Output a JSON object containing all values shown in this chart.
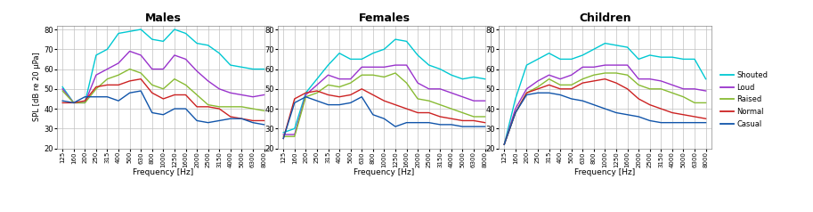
{
  "freq_labels": [
    125,
    160,
    200,
    250,
    315,
    400,
    500,
    630,
    800,
    1000,
    1250,
    1600,
    2000,
    2500,
    3150,
    4000,
    5000,
    6300,
    8000
  ],
  "males": {
    "shouted": [
      51,
      43,
      43,
      67,
      70,
      78,
      79,
      80,
      75,
      74,
      80,
      78,
      73,
      72,
      68,
      62,
      61,
      60,
      60
    ],
    "loud": [
      50,
      43,
      43,
      57,
      60,
      63,
      69,
      67,
      60,
      60,
      67,
      65,
      59,
      54,
      50,
      48,
      47,
      46,
      47
    ],
    "raised": [
      49,
      43,
      43,
      50,
      55,
      57,
      60,
      58,
      52,
      50,
      55,
      52,
      47,
      42,
      41,
      41,
      41,
      40,
      39
    ],
    "normal": [
      43,
      43,
      44,
      51,
      52,
      52,
      54,
      55,
      48,
      45,
      47,
      47,
      41,
      41,
      40,
      36,
      35,
      34,
      34
    ],
    "casual": [
      44,
      43,
      46,
      46,
      46,
      44,
      48,
      49,
      38,
      37,
      40,
      40,
      34,
      33,
      34,
      35,
      35,
      33,
      32
    ]
  },
  "females": {
    "shouted": [
      28,
      30,
      48,
      55,
      62,
      68,
      65,
      65,
      68,
      70,
      75,
      74,
      67,
      62,
      60,
      57,
      55,
      56,
      55
    ],
    "loud": [
      27,
      27,
      47,
      52,
      57,
      55,
      55,
      61,
      61,
      61,
      62,
      62,
      53,
      50,
      50,
      48,
      46,
      44,
      44
    ],
    "raised": [
      26,
      26,
      46,
      48,
      52,
      51,
      53,
      57,
      57,
      56,
      58,
      53,
      45,
      44,
      42,
      40,
      38,
      36,
      36
    ],
    "normal": [
      25,
      45,
      48,
      49,
      47,
      46,
      47,
      50,
      47,
      44,
      42,
      40,
      38,
      38,
      36,
      35,
      34,
      34,
      33
    ],
    "casual": [
      25,
      43,
      46,
      44,
      42,
      42,
      43,
      46,
      37,
      35,
      31,
      33,
      33,
      33,
      32,
      32,
      31,
      31,
      31
    ]
  },
  "children": {
    "shouted": [
      22,
      45,
      62,
      65,
      68,
      65,
      65,
      67,
      70,
      73,
      72,
      71,
      65,
      67,
      66,
      66,
      65,
      65,
      55
    ],
    "loud": [
      22,
      40,
      50,
      54,
      57,
      55,
      57,
      61,
      61,
      62,
      62,
      62,
      55,
      55,
      54,
      52,
      50,
      50,
      49
    ],
    "raised": [
      22,
      38,
      48,
      51,
      55,
      52,
      52,
      55,
      57,
      58,
      58,
      57,
      52,
      50,
      50,
      48,
      46,
      43,
      43
    ],
    "normal": [
      22,
      38,
      48,
      50,
      52,
      50,
      50,
      53,
      54,
      55,
      53,
      50,
      45,
      42,
      40,
      38,
      37,
      36,
      35
    ],
    "casual": [
      22,
      38,
      47,
      48,
      48,
      47,
      45,
      44,
      42,
      40,
      38,
      37,
      36,
      34,
      33,
      33,
      33,
      33,
      33
    ]
  },
  "colors": {
    "shouted": "#00c8d2",
    "loud": "#9933cc",
    "raised": "#88bb33",
    "normal": "#cc2222",
    "casual": "#1155aa"
  },
  "ylabel": "SPL [dB re 20 µPa]",
  "xlabel": "Frequency [Hz]",
  "ylim": [
    20,
    82
  ],
  "yticks": [
    20,
    30,
    40,
    50,
    60,
    70,
    80
  ],
  "titles": [
    "Males",
    "Females",
    "Children"
  ],
  "legend_labels": [
    "Shouted",
    "Loud",
    "Raised",
    "Normal",
    "Casual"
  ]
}
